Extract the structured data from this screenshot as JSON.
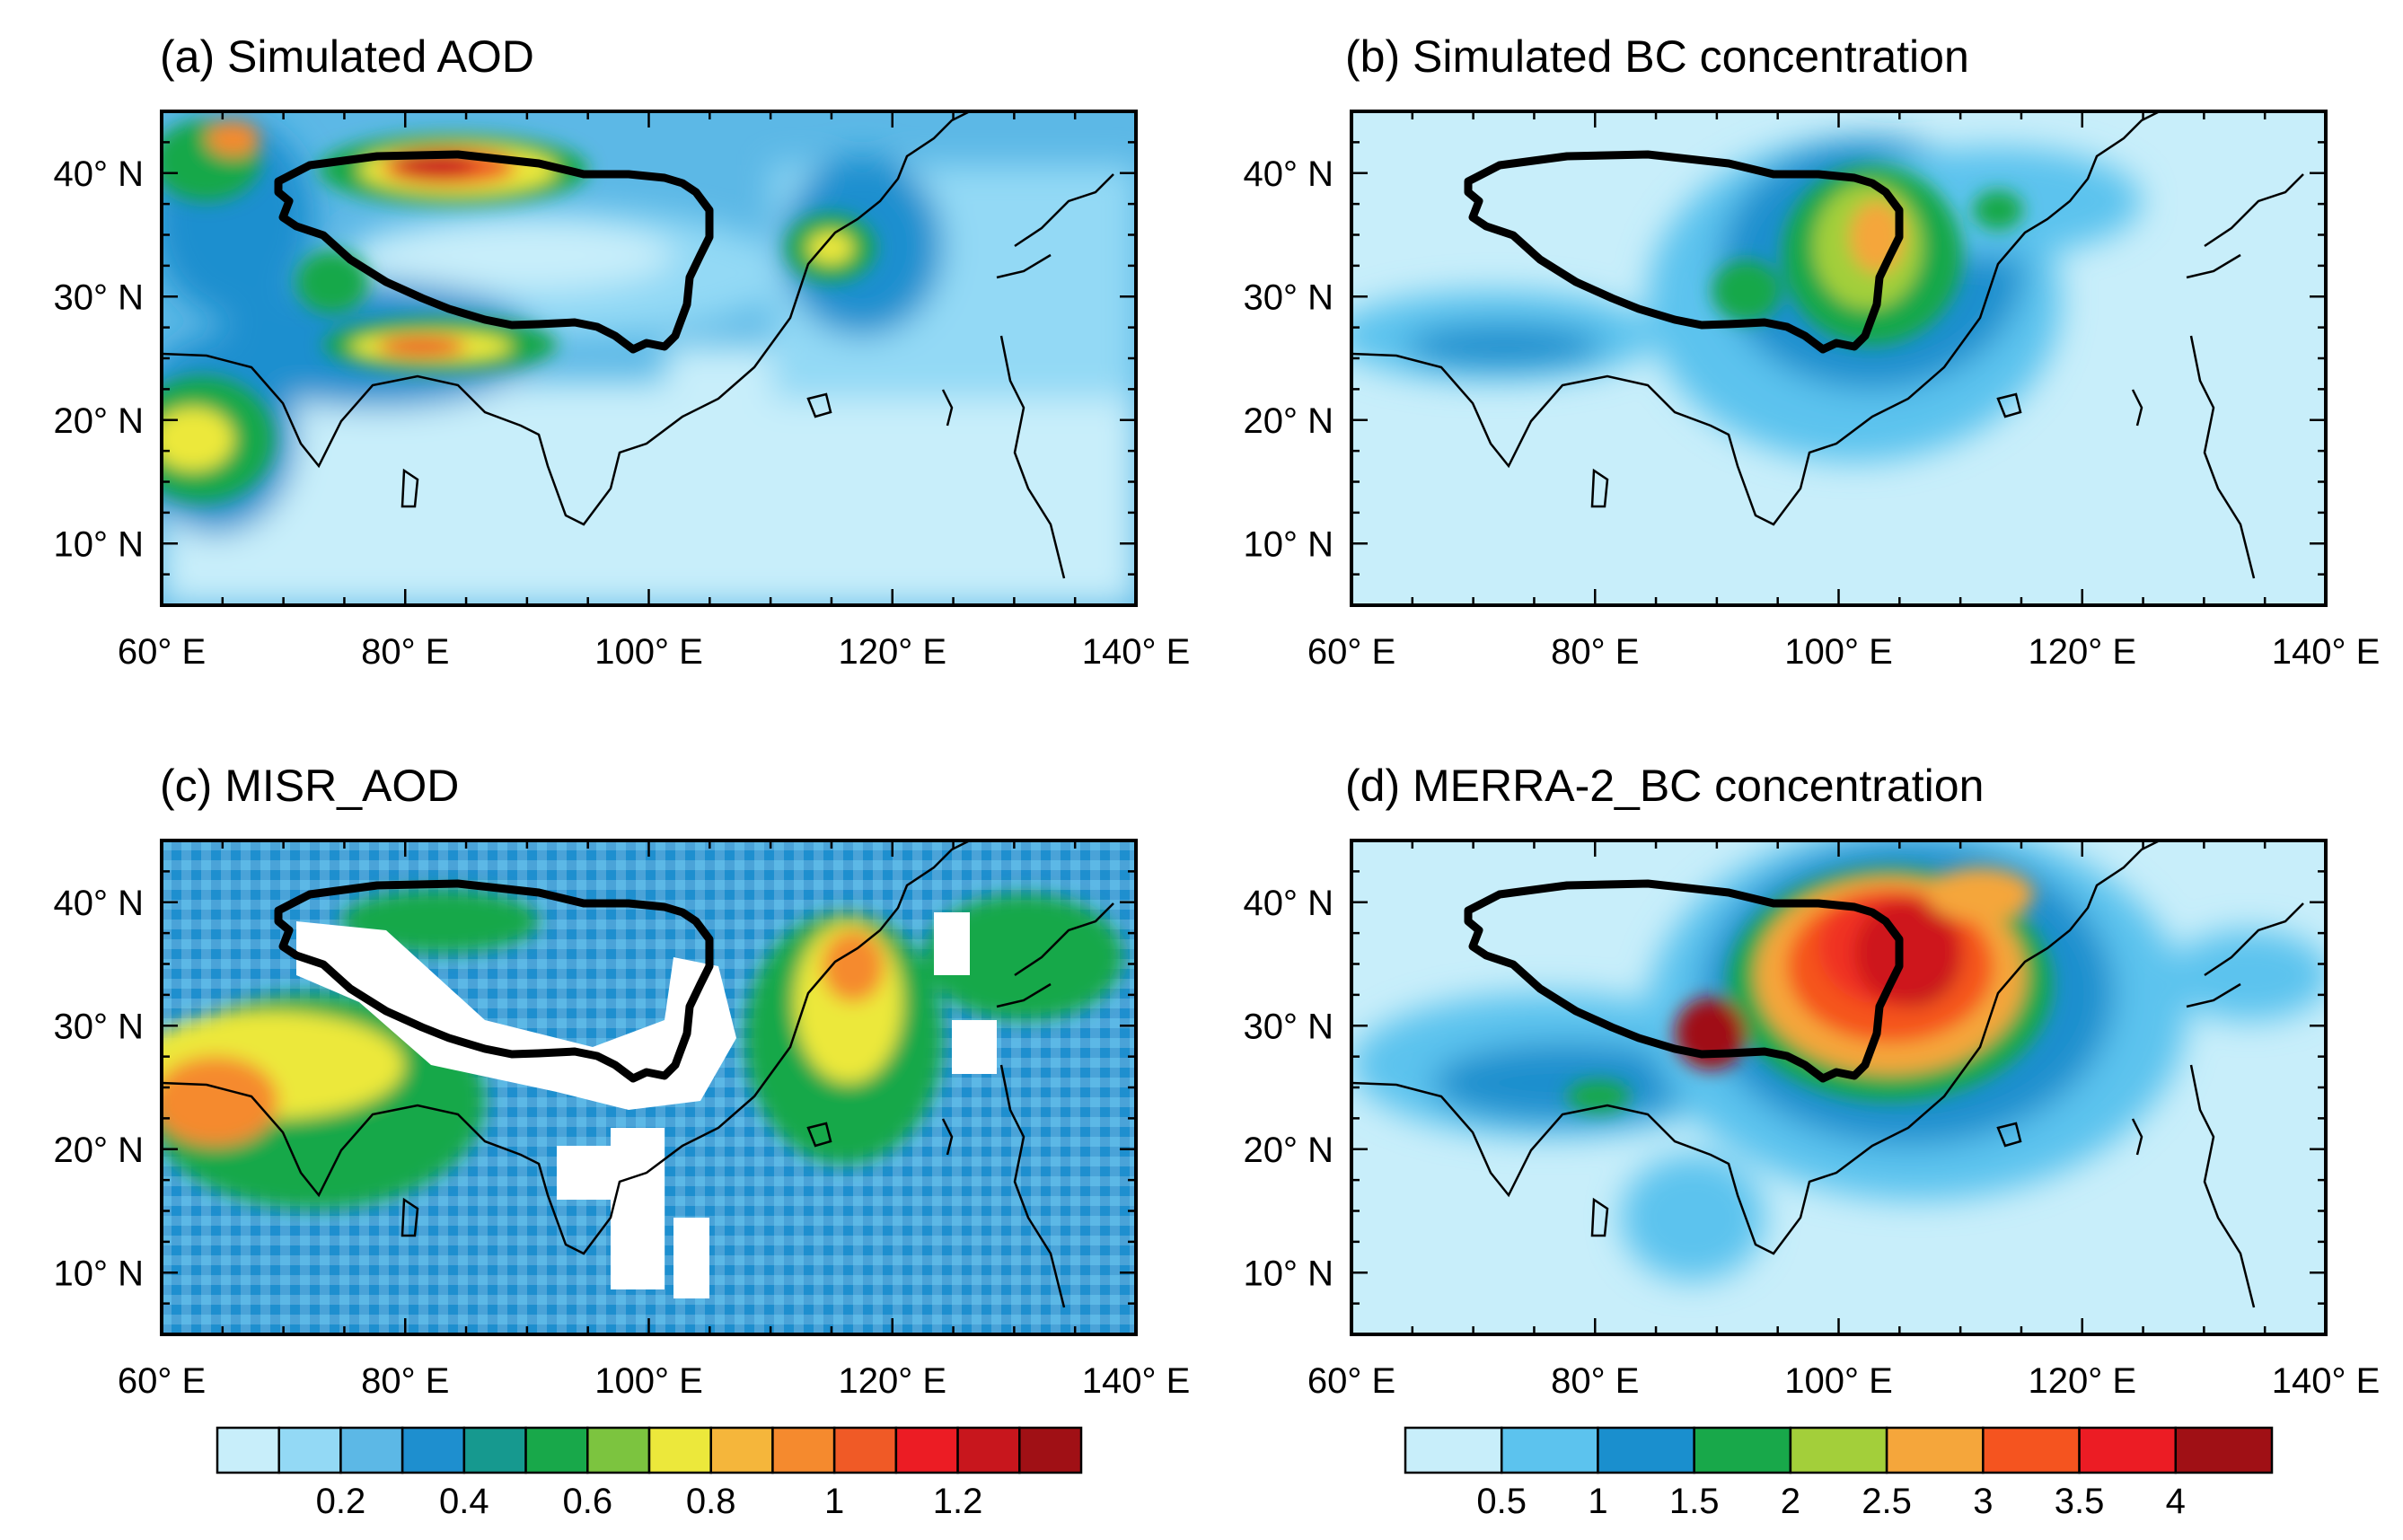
{
  "panels": [
    {
      "id": "a",
      "title": "(a) Simulated AOD"
    },
    {
      "id": "b",
      "title": "(b) Simulated BC concentration"
    },
    {
      "id": "c",
      "title": "(c) MISR_AOD"
    },
    {
      "id": "d",
      "title": "(d) MERRA-2_BC concentration"
    }
  ],
  "lon_ticks": [
    "60° E",
    "80° E",
    "100° E",
    "120° E",
    "140° E"
  ],
  "lat_ticks": [
    "40° N",
    "30° N",
    "20° N",
    "10° N"
  ],
  "map_extent": {
    "lon": [
      60,
      140
    ],
    "lat": [
      5,
      45
    ]
  },
  "colorbars": {
    "aod": {
      "colors": [
        "#c8eefa",
        "#93d9f5",
        "#5cb8e6",
        "#1e8fcf",
        "#16998f",
        "#18a84a",
        "#7cc43f",
        "#ece83b",
        "#f5b63b",
        "#f58a2e",
        "#f05a26",
        "#ec1c24",
        "#c8161d",
        "#a01015"
      ],
      "labels": [
        "0.2",
        "0.4",
        "0.6",
        "0.8",
        "1",
        "1.2"
      ]
    },
    "bc": {
      "colors": [
        "#c8eefa",
        "#5cc3ee",
        "#1a8fce",
        "#18a84a",
        "#a3cf3a",
        "#f5a63b",
        "#f5541f",
        "#ec1c24",
        "#a01015"
      ],
      "labels": [
        "0.5",
        "1",
        "1.5",
        "2",
        "2.5",
        "3",
        "3.5",
        "4"
      ]
    }
  }
}
